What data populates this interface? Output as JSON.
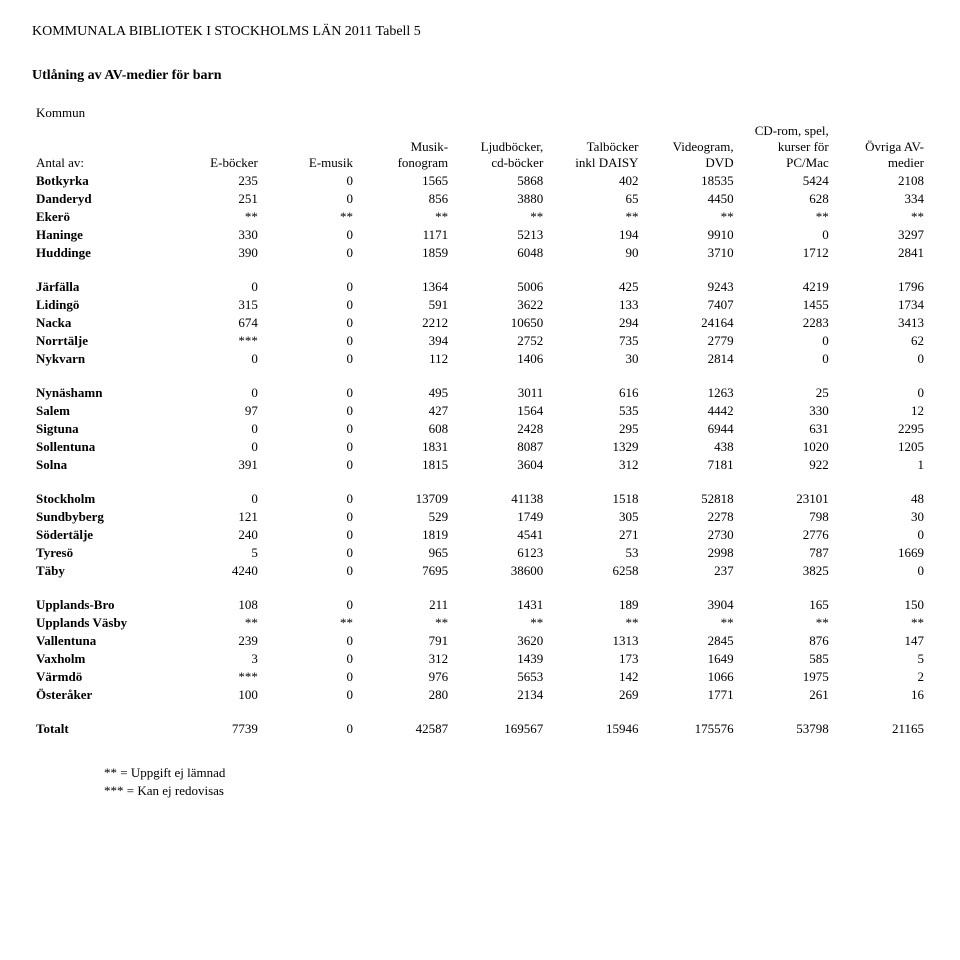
{
  "doc_title": "KOMMUNALA BIBLIOTEK I STOCKHOLMS LÄN 2011    Tabell 5",
  "subtitle": "Utlåning av AV-medier för barn",
  "kommun_label": "Kommun",
  "row_header_label": "Antal av:",
  "columns": [
    "E-böcker",
    "E-musik",
    "Musik-\nfonogram",
    "Ljudböcker,\ncd-böcker",
    "Talböcker\ninkl DAISY",
    "Videogram,\nDVD",
    "CD-rom, spel,\nkurser för\nPC/Mac",
    "Övriga AV-\nmedier"
  ],
  "groups": [
    [
      {
        "name": "Botkyrka",
        "v": [
          "235",
          "0",
          "1565",
          "5868",
          "402",
          "18535",
          "5424",
          "2108"
        ]
      },
      {
        "name": "Danderyd",
        "v": [
          "251",
          "0",
          "856",
          "3880",
          "65",
          "4450",
          "628",
          "334"
        ]
      },
      {
        "name": "Ekerö",
        "v": [
          "**",
          "**",
          "**",
          "**",
          "**",
          "**",
          "**",
          "**"
        ]
      },
      {
        "name": "Haninge",
        "v": [
          "330",
          "0",
          "1171",
          "5213",
          "194",
          "9910",
          "0",
          "3297"
        ]
      },
      {
        "name": "Huddinge",
        "v": [
          "390",
          "0",
          "1859",
          "6048",
          "90",
          "3710",
          "1712",
          "2841"
        ]
      }
    ],
    [
      {
        "name": "Järfälla",
        "v": [
          "0",
          "0",
          "1364",
          "5006",
          "425",
          "9243",
          "4219",
          "1796"
        ]
      },
      {
        "name": "Lidingö",
        "v": [
          "315",
          "0",
          "591",
          "3622",
          "133",
          "7407",
          "1455",
          "1734"
        ]
      },
      {
        "name": "Nacka",
        "v": [
          "674",
          "0",
          "2212",
          "10650",
          "294",
          "24164",
          "2283",
          "3413"
        ]
      },
      {
        "name": "Norrtälje",
        "v": [
          "***",
          "0",
          "394",
          "2752",
          "735",
          "2779",
          "0",
          "62"
        ]
      },
      {
        "name": "Nykvarn",
        "v": [
          "0",
          "0",
          "112",
          "1406",
          "30",
          "2814",
          "0",
          "0"
        ]
      }
    ],
    [
      {
        "name": "Nynäshamn",
        "v": [
          "0",
          "0",
          "495",
          "3011",
          "616",
          "1263",
          "25",
          "0"
        ]
      },
      {
        "name": "Salem",
        "v": [
          "97",
          "0",
          "427",
          "1564",
          "535",
          "4442",
          "330",
          "12"
        ]
      },
      {
        "name": "Sigtuna",
        "v": [
          "0",
          "0",
          "608",
          "2428",
          "295",
          "6944",
          "631",
          "2295"
        ]
      },
      {
        "name": "Sollentuna",
        "v": [
          "0",
          "0",
          "1831",
          "8087",
          "1329",
          "438",
          "1020",
          "1205"
        ]
      },
      {
        "name": "Solna",
        "v": [
          "391",
          "0",
          "1815",
          "3604",
          "312",
          "7181",
          "922",
          "1"
        ]
      }
    ],
    [
      {
        "name": "Stockholm",
        "v": [
          "0",
          "0",
          "13709",
          "41138",
          "1518",
          "52818",
          "23101",
          "48"
        ]
      },
      {
        "name": "Sundbyberg",
        "v": [
          "121",
          "0",
          "529",
          "1749",
          "305",
          "2278",
          "798",
          "30"
        ]
      },
      {
        "name": "Södertälje",
        "v": [
          "240",
          "0",
          "1819",
          "4541",
          "271",
          "2730",
          "2776",
          "0"
        ]
      },
      {
        "name": "Tyresö",
        "v": [
          "5",
          "0",
          "965",
          "6123",
          "53",
          "2998",
          "787",
          "1669"
        ]
      },
      {
        "name": "Täby",
        "v": [
          "4240",
          "0",
          "7695",
          "38600",
          "6258",
          "237",
          "3825",
          "0"
        ]
      }
    ],
    [
      {
        "name": "Upplands-Bro",
        "v": [
          "108",
          "0",
          "211",
          "1431",
          "189",
          "3904",
          "165",
          "150"
        ]
      },
      {
        "name": "Upplands Väsby",
        "v": [
          "**",
          "**",
          "**",
          "**",
          "**",
          "**",
          "**",
          "**"
        ]
      },
      {
        "name": "Vallentuna",
        "v": [
          "239",
          "0",
          "791",
          "3620",
          "1313",
          "2845",
          "876",
          "147"
        ]
      },
      {
        "name": "Vaxholm",
        "v": [
          "3",
          "0",
          "312",
          "1439",
          "173",
          "1649",
          "585",
          "5"
        ]
      },
      {
        "name": "Värmdö",
        "v": [
          "***",
          "0",
          "976",
          "5653",
          "142",
          "1066",
          "1975",
          "2"
        ]
      },
      {
        "name": "Österåker",
        "v": [
          "100",
          "0",
          "280",
          "2134",
          "269",
          "1771",
          "261",
          "16"
        ]
      }
    ],
    [
      {
        "name": "Totalt",
        "v": [
          "7739",
          "0",
          "42587",
          "169567",
          "15946",
          "175576",
          "53798",
          "21165"
        ]
      }
    ]
  ],
  "footnotes": [
    "** = Uppgift ej lämnad",
    "*** = Kan ej redovisas"
  ]
}
